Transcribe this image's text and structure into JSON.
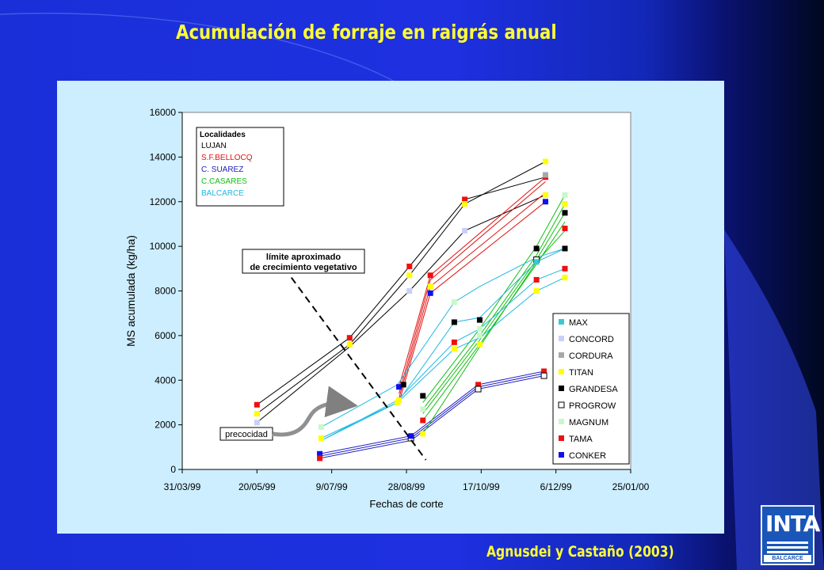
{
  "slide": {
    "title": "Acumulación de forraje en raigrás anual",
    "credit": "Agnusdei y Castaño (2003)",
    "logo_text": "INTA",
    "logo_sub": "BALCARCE"
  },
  "colors": {
    "background": "#1e30e0",
    "title": "#ffff33",
    "panel": "#cdeefe"
  },
  "chart_data": {
    "type": "line",
    "xlabel": "Fechas de corte",
    "ylabel": "MS acumulada (kg/ha)",
    "xlim": [
      "1999-03-31",
      "2000-01-25"
    ],
    "ylim": [
      0,
      16000
    ],
    "xticks": [
      {
        "date": "1999-03-31",
        "label": "31/03/99"
      },
      {
        "date": "1999-05-20",
        "label": "20/05/99"
      },
      {
        "date": "1999-07-09",
        "label": "9/07/99"
      },
      {
        "date": "1999-08-28",
        "label": "28/08/99"
      },
      {
        "date": "1999-10-17",
        "label": "17/10/99"
      },
      {
        "date": "1999-12-06",
        "label": "6/12/99"
      },
      {
        "date": "2000-01-25",
        "label": "25/01/00"
      }
    ],
    "yticks": [
      0,
      2000,
      4000,
      6000,
      8000,
      10000,
      12000,
      14000,
      16000
    ],
    "localidades": {
      "title": "Localidades",
      "items": [
        {
          "name": "LUJAN",
          "color": "#000000"
        },
        {
          "name": "S.F.BELLOCQ",
          "color": "#e01010"
        },
        {
          "name": "C. SUAREZ",
          "color": "#2020c0"
        },
        {
          "name": "C.CASARES",
          "color": "#10c010"
        },
        {
          "name": "BALCARCE",
          "color": "#20b8e0"
        }
      ]
    },
    "legend": [
      {
        "name": "MAX",
        "color": "#3cc8d0",
        "hollow": false
      },
      {
        "name": "CONCORD",
        "color": "#c8d0f8",
        "hollow": false
      },
      {
        "name": "CORDURA",
        "color": "#a8a8a8",
        "hollow": false
      },
      {
        "name": "TITAN",
        "color": "#ffff00",
        "hollow": false
      },
      {
        "name": "GRANDESA",
        "color": "#000000",
        "hollow": false
      },
      {
        "name": "PROGROW",
        "color": "#ffffff",
        "hollow": true
      },
      {
        "name": "MAGNUM",
        "color": "#c8f8c8",
        "hollow": false
      },
      {
        "name": "TAMA",
        "color": "#ee1010",
        "hollow": false
      },
      {
        "name": "CONKER",
        "color": "#1010ee",
        "hollow": false
      }
    ],
    "annotations": [
      {
        "text": "límite aproximado de crecimiento vegetativo",
        "lines": [
          "límite aproximado",
          "de crecimiento vegetativo"
        ]
      },
      {
        "text": "precocidad"
      }
    ],
    "series": [
      {
        "name": "LUJAN",
        "color": "#000000",
        "lines": [
          {
            "x": [
              "1999-05-20",
              "1999-07-21",
              "1999-08-30",
              "1999-10-06",
              "1999-11-29"
            ],
            "y": [
              2900,
              5900,
              9100,
              12100,
              13100
            ]
          },
          {
            "x": [
              "1999-05-20",
              "1999-07-21",
              "1999-08-30",
              "1999-10-06",
              "1999-11-29"
            ],
            "y": [
              2500,
              5600,
              8700,
              11900,
              13800
            ]
          },
          {
            "x": [
              "1999-05-20",
              "1999-07-21",
              "1999-08-30",
              "1999-10-06",
              "1999-11-29"
            ],
            "y": [
              2100,
              5500,
              8000,
              10700,
              12300
            ]
          }
        ],
        "markers": [
          {
            "x": "1999-05-20",
            "y": 2900,
            "v": "TAMA"
          },
          {
            "x": "1999-05-20",
            "y": 2500,
            "v": "TITAN"
          },
          {
            "x": "1999-05-20",
            "y": 2100,
            "v": "CONCORD"
          },
          {
            "x": "1999-07-21",
            "y": 5900,
            "v": "TAMA"
          },
          {
            "x": "1999-07-21",
            "y": 5600,
            "v": "TITAN"
          },
          {
            "x": "1999-08-30",
            "y": 9100,
            "v": "TAMA"
          },
          {
            "x": "1999-08-30",
            "y": 8700,
            "v": "TITAN"
          },
          {
            "x": "1999-08-30",
            "y": 8000,
            "v": "CONCORD"
          },
          {
            "x": "1999-10-06",
            "y": 12100,
            "v": "TAMA"
          },
          {
            "x": "1999-10-06",
            "y": 11900,
            "v": "TITAN"
          },
          {
            "x": "1999-10-06",
            "y": 10700,
            "v": "CONCORD"
          },
          {
            "x": "1999-11-29",
            "y": 13800,
            "v": "TITAN"
          },
          {
            "x": "1999-11-29",
            "y": 13100,
            "v": "TAMA"
          },
          {
            "x": "1999-11-29",
            "y": 12300,
            "v": "CONCORD"
          }
        ]
      },
      {
        "name": "S.F.BELLOCQ",
        "color": "#e01010",
        "lines": [
          {
            "x": [
              "1999-08-23",
              "1999-09-13",
              "1999-11-29"
            ],
            "y": [
              3700,
              8700,
              13100
            ]
          },
          {
            "x": [
              "1999-08-23",
              "1999-09-13",
              "1999-11-29"
            ],
            "y": [
              3400,
              8500,
              12900
            ]
          },
          {
            "x": [
              "1999-08-23",
              "1999-09-13",
              "1999-11-29"
            ],
            "y": [
              3200,
              8200,
              12400
            ]
          },
          {
            "x": [
              "1999-08-23",
              "1999-09-13",
              "1999-11-29"
            ],
            "y": [
              3000,
              7900,
              12000
            ]
          }
        ],
        "markers": [
          {
            "x": "1999-08-23",
            "y": 3700,
            "v": "CONKER"
          },
          {
            "x": "1999-08-23",
            "y": 3100,
            "v": "TITAN"
          },
          {
            "x": "1999-09-13",
            "y": 8700,
            "v": "TAMA"
          },
          {
            "x": "1999-09-13",
            "y": 8200,
            "v": "TITAN"
          },
          {
            "x": "1999-09-13",
            "y": 7900,
            "v": "CONKER"
          },
          {
            "x": "1999-11-29",
            "y": 13200,
            "v": "CORDURA"
          },
          {
            "x": "1999-11-29",
            "y": 12300,
            "v": "TITAN"
          },
          {
            "x": "1999-11-29",
            "y": 12000,
            "v": "CONKER"
          }
        ]
      },
      {
        "name": "C. SUAREZ",
        "color": "#2020c0",
        "lines": [
          {
            "x": [
              "1999-07-01",
              "1999-08-31",
              "1999-10-15",
              "1999-11-28"
            ],
            "y": [
              700,
              1500,
              3800,
              4400
            ]
          },
          {
            "x": [
              "1999-07-01",
              "1999-08-31",
              "1999-10-15",
              "1999-11-28"
            ],
            "y": [
              600,
              1400,
              3700,
              4300
            ]
          },
          {
            "x": [
              "1999-07-01",
              "1999-08-31",
              "1999-10-15",
              "1999-11-28"
            ],
            "y": [
              500,
              1300,
              3600,
              4200
            ]
          }
        ],
        "markers": [
          {
            "x": "1999-07-01",
            "y": 700,
            "v": "CONKER"
          },
          {
            "x": "1999-07-01",
            "y": 500,
            "v": "TAMA"
          },
          {
            "x": "1999-08-31",
            "y": 1400,
            "v": "PROGROW"
          },
          {
            "x": "1999-08-31",
            "y": 1500,
            "v": "CONKER"
          },
          {
            "x": "1999-10-15",
            "y": 3800,
            "v": "TAMA"
          },
          {
            "x": "1999-10-15",
            "y": 3600,
            "v": "PROGROW"
          },
          {
            "x": "1999-11-28",
            "y": 4400,
            "v": "TAMA"
          },
          {
            "x": "1999-11-28",
            "y": 4200,
            "v": "PROGROW"
          }
        ]
      },
      {
        "name": "C.CASARES",
        "color": "#10c010",
        "lines": [
          {
            "x": [
              "1999-09-08",
              "1999-10-16",
              "1999-11-23",
              "1999-12-12"
            ],
            "y": [
              3000,
              6300,
              10000,
              12300
            ]
          },
          {
            "x": [
              "1999-09-08",
              "1999-10-16",
              "1999-11-23",
              "1999-12-12"
            ],
            "y": [
              2700,
              6000,
              9600,
              11900
            ]
          },
          {
            "x": [
              "1999-09-08",
              "1999-10-16",
              "1999-11-23",
              "1999-12-12"
            ],
            "y": [
              2500,
              5800,
              9400,
              11500
            ]
          },
          {
            "x": [
              "1999-09-08",
              "1999-10-16",
              "1999-11-23",
              "1999-12-12"
            ],
            "y": [
              2200,
              5600,
              9200,
              11100
            ]
          },
          {
            "x": [
              "1999-09-08",
              "1999-10-16",
              "1999-11-23",
              "1999-12-12"
            ],
            "y": [
              1600,
              5500,
              9300,
              10700
            ]
          }
        ],
        "markers": [
          {
            "x": "1999-09-08",
            "y": 3300,
            "v": "GRANDESA"
          },
          {
            "x": "1999-09-08",
            "y": 2700,
            "v": "MAGNUM"
          },
          {
            "x": "1999-09-08",
            "y": 2200,
            "v": "TAMA"
          },
          {
            "x": "1999-09-08",
            "y": 1600,
            "v": "TITAN"
          },
          {
            "x": "1999-10-16",
            "y": 6300,
            "v": "MAGNUM"
          },
          {
            "x": "1999-10-16",
            "y": 5600,
            "v": "TITAN"
          },
          {
            "x": "1999-11-23",
            "y": 9900,
            "v": "GRANDESA"
          },
          {
            "x": "1999-11-23",
            "y": 9400,
            "v": "PROGROW"
          },
          {
            "x": "1999-12-12",
            "y": 12300,
            "v": "MAGNUM"
          },
          {
            "x": "1999-12-12",
            "y": 11900,
            "v": "TITAN"
          },
          {
            "x": "1999-12-12",
            "y": 11500,
            "v": "GRANDESA"
          },
          {
            "x": "1999-12-12",
            "y": 10800,
            "v": "TAMA"
          }
        ]
      },
      {
        "name": "BALCARCE",
        "color": "#20b8e0",
        "lines": [
          {
            "x": [
              "1999-07-02",
              "1999-08-22",
              "1999-09-29",
              "1999-10-16",
              "1999-11-23",
              "1999-12-12"
            ],
            "y": [
              1900,
              3800,
              7500,
              8200,
              9500,
              9900
            ]
          },
          {
            "x": [
              "1999-07-02",
              "1999-08-22",
              "1999-09-29",
              "1999-10-16",
              "1999-11-23",
              "1999-12-12"
            ],
            "y": [
              1400,
              3000,
              6600,
              6800,
              9300,
              9900
            ]
          },
          {
            "x": [
              "1999-07-02",
              "1999-08-22",
              "1999-09-29",
              "1999-10-16",
              "1999-11-23",
              "1999-12-12"
            ],
            "y": [
              1300,
              3100,
              5700,
              6300,
              8500,
              9000
            ]
          },
          {
            "x": [
              "1999-07-02",
              "1999-08-22",
              "1999-09-29",
              "1999-10-16",
              "1999-11-23",
              "1999-12-12"
            ],
            "y": [
              1300,
              3000,
              5400,
              5900,
              8000,
              8600
            ]
          }
        ],
        "markers": [
          {
            "x": "1999-07-02",
            "y": 1900,
            "v": "MAGNUM"
          },
          {
            "x": "1999-07-02",
            "y": 1400,
            "v": "TITAN"
          },
          {
            "x": "1999-08-26",
            "y": 3800,
            "v": "GRANDESA"
          },
          {
            "x": "1999-08-22",
            "y": 3000,
            "v": "TITAN"
          },
          {
            "x": "1999-09-29",
            "y": 7500,
            "v": "MAGNUM"
          },
          {
            "x": "1999-09-29",
            "y": 6600,
            "v": "GRANDESA"
          },
          {
            "x": "1999-09-29",
            "y": 5700,
            "v": "TAMA"
          },
          {
            "x": "1999-09-29",
            "y": 5400,
            "v": "TITAN"
          },
          {
            "x": "1999-10-16",
            "y": 6700,
            "v": "GRANDESA"
          },
          {
            "x": "1999-10-16",
            "y": 6000,
            "v": "MAGNUM"
          },
          {
            "x": "1999-11-23",
            "y": 9300,
            "v": "MAX"
          },
          {
            "x": "1999-11-23",
            "y": 8500,
            "v": "TAMA"
          },
          {
            "x": "1999-11-23",
            "y": 8000,
            "v": "TITAN"
          },
          {
            "x": "1999-12-12",
            "y": 9900,
            "v": "GRANDESA"
          },
          {
            "x": "1999-12-12",
            "y": 9000,
            "v": "TAMA"
          },
          {
            "x": "1999-12-12",
            "y": 8600,
            "v": "TITAN"
          }
        ]
      }
    ],
    "vegetative_limit": {
      "x": [
        "1999-06-12",
        "1999-09-10"
      ],
      "y": [
        8600,
        0
      ]
    }
  }
}
